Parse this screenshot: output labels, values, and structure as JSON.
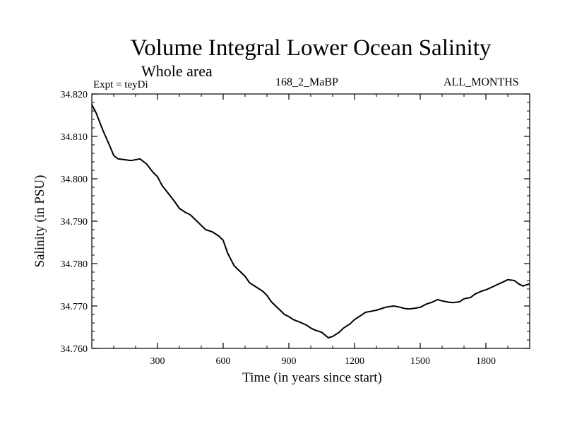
{
  "header": {
    "subtitle": "Whole area",
    "experiment": "Expt = teyDi",
    "run_id": "168_2_MaBP",
    "months": "ALL_MONTHS"
  },
  "chart_data": {
    "type": "line",
    "title": "Volume Integral Lower Ocean Salinity",
    "xlabel": "Time (in years since start)",
    "ylabel": "Salinity (in PSU)",
    "xlim": [
      0,
      2000
    ],
    "ylim": [
      34.76,
      34.82
    ],
    "xticks": [
      300,
      600,
      900,
      1200,
      1500,
      1800
    ],
    "xtick_labels": [
      "300",
      "600",
      "900",
      "1200",
      "1500",
      "1800"
    ],
    "yticks": [
      34.76,
      34.77,
      34.78,
      34.79,
      34.8,
      34.81,
      34.82
    ],
    "ytick_labels": [
      "34.760",
      "34.770",
      "34.780",
      "34.790",
      "34.800",
      "34.810",
      "34.820"
    ],
    "series": [
      {
        "name": "Volume integral lower ocean salinity",
        "color": "#000000",
        "x": [
          0,
          20,
          50,
          80,
          100,
          120,
          150,
          180,
          200,
          220,
          250,
          280,
          300,
          320,
          350,
          380,
          400,
          430,
          450,
          480,
          500,
          520,
          550,
          580,
          600,
          620,
          650,
          680,
          700,
          720,
          750,
          780,
          800,
          820,
          850,
          880,
          900,
          920,
          950,
          980,
          1000,
          1020,
          1050,
          1080,
          1100,
          1130,
          1150,
          1180,
          1200,
          1230,
          1250,
          1280,
          1300,
          1330,
          1350,
          1380,
          1400,
          1430,
          1450,
          1480,
          1500,
          1530,
          1550,
          1580,
          1600,
          1630,
          1650,
          1680,
          1700,
          1730,
          1750,
          1780,
          1800,
          1830,
          1850,
          1880,
          1900,
          1930,
          1950,
          1970,
          1985,
          2000
        ],
        "y": [
          34.8175,
          34.8155,
          34.8115,
          34.808,
          34.8055,
          34.8047,
          34.8045,
          34.8043,
          34.8045,
          34.8047,
          34.8035,
          34.8015,
          34.8005,
          34.7985,
          34.7965,
          34.7945,
          34.793,
          34.792,
          34.7915,
          34.79,
          34.789,
          34.788,
          34.7875,
          34.7865,
          34.7855,
          34.7825,
          34.7795,
          34.778,
          34.777,
          34.7755,
          34.7745,
          34.7735,
          34.7725,
          34.771,
          34.7695,
          34.768,
          34.7675,
          34.7668,
          34.7662,
          34.7655,
          34.7648,
          34.7643,
          34.7638,
          34.7625,
          34.7628,
          34.7638,
          34.7648,
          34.7658,
          34.7668,
          34.7678,
          34.7685,
          34.7688,
          34.769,
          34.7695,
          34.7698,
          34.77,
          34.7698,
          34.7694,
          34.7693,
          34.7695,
          34.7697,
          34.7705,
          34.7708,
          34.7715,
          34.7712,
          34.7709,
          34.7708,
          34.771,
          34.7717,
          34.772,
          34.7728,
          34.7735,
          34.7738,
          34.7745,
          34.775,
          34.7757,
          34.7762,
          34.776,
          34.7752,
          34.7747,
          34.775,
          34.7752
        ]
      }
    ]
  }
}
